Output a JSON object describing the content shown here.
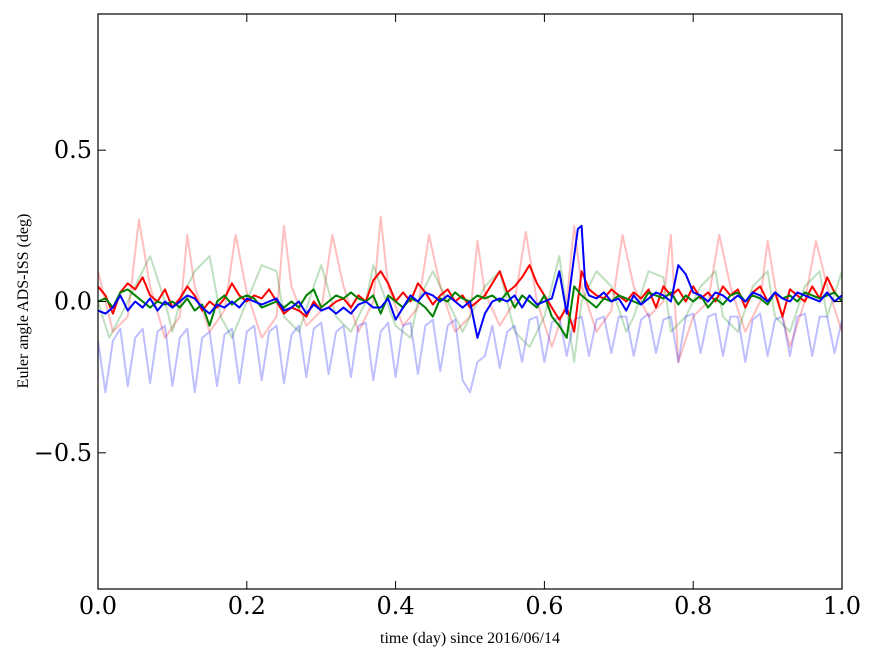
{
  "chart_data": {
    "type": "line",
    "title": "",
    "xlabel": "time (day) since 2016/06/14",
    "ylabel": "Euler angle ADS-ISS (deg)",
    "xlim": [
      0.0,
      1.0
    ],
    "ylim": [
      -0.95,
      0.95
    ],
    "x_ticks": [
      0.0,
      0.2,
      0.4,
      0.6,
      0.8,
      1.0
    ],
    "x_tick_labels": [
      "0.0",
      "0.2",
      "0.4",
      "0.6",
      "0.8",
      "1.0"
    ],
    "y_ticks": [
      -0.5,
      0.0,
      0.5
    ],
    "y_tick_labels": [
      "−0.5",
      "0.0",
      "0.5"
    ],
    "grid": false,
    "legend": "none",
    "series": [
      {
        "color": "#ff0000",
        "alpha": 0.25,
        "x": [
          0.0,
          0.02,
          0.04,
          0.055,
          0.07,
          0.09,
          0.11,
          0.12,
          0.13,
          0.15,
          0.17,
          0.185,
          0.2,
          0.22,
          0.24,
          0.25,
          0.26,
          0.28,
          0.3,
          0.315,
          0.33,
          0.35,
          0.37,
          0.38,
          0.39,
          0.41,
          0.43,
          0.445,
          0.46,
          0.48,
          0.5,
          0.51,
          0.52,
          0.54,
          0.56,
          0.575,
          0.59,
          0.61,
          0.63,
          0.64,
          0.65,
          0.67,
          0.69,
          0.705,
          0.72,
          0.74,
          0.76,
          0.77,
          0.78,
          0.8,
          0.82,
          0.835,
          0.85,
          0.87,
          0.89,
          0.9,
          0.91,
          0.93,
          0.95,
          0.965,
          0.98,
          1.0
        ],
        "y": [
          0.1,
          -0.1,
          -0.05,
          0.27,
          0.05,
          -0.12,
          -0.05,
          0.22,
          0.05,
          -0.1,
          -0.03,
          0.22,
          0.03,
          -0.12,
          -0.05,
          0.25,
          0.05,
          -0.08,
          -0.03,
          0.22,
          0.05,
          -0.1,
          0.0,
          0.28,
          0.05,
          -0.08,
          -0.02,
          0.22,
          0.05,
          -0.1,
          -0.05,
          0.2,
          0.03,
          -0.08,
          0.0,
          0.23,
          0.0,
          -0.15,
          0.0,
          0.25,
          0.05,
          -0.1,
          -0.03,
          0.22,
          0.05,
          -0.05,
          0.0,
          0.22,
          -0.2,
          -0.05,
          0.0,
          0.22,
          0.05,
          -0.1,
          0.0,
          0.2,
          0.05,
          -0.15,
          0.0,
          0.2,
          0.05,
          -0.1
        ]
      },
      {
        "color": "#008000",
        "alpha": 0.25,
        "x": [
          0.0,
          0.015,
          0.03,
          0.05,
          0.07,
          0.09,
          0.1,
          0.11,
          0.13,
          0.15,
          0.165,
          0.18,
          0.2,
          0.22,
          0.24,
          0.25,
          0.27,
          0.29,
          0.3,
          0.32,
          0.34,
          0.36,
          0.37,
          0.38,
          0.4,
          0.42,
          0.43,
          0.45,
          0.47,
          0.49,
          0.5,
          0.52,
          0.54,
          0.56,
          0.58,
          0.6,
          0.62,
          0.64,
          0.65,
          0.67,
          0.69,
          0.71,
          0.72,
          0.74,
          0.76,
          0.77,
          0.79,
          0.81,
          0.83,
          0.84,
          0.86,
          0.88,
          0.9,
          0.91,
          0.93,
          0.95,
          0.97,
          0.98,
          1.0
        ],
        "y": [
          0.0,
          -0.12,
          -0.05,
          0.05,
          0.15,
          0.0,
          -0.1,
          0.0,
          0.1,
          0.15,
          -0.05,
          -0.12,
          0.0,
          0.12,
          0.1,
          -0.05,
          -0.1,
          0.05,
          0.12,
          -0.05,
          -0.1,
          0.0,
          0.12,
          0.05,
          -0.08,
          -0.12,
          0.0,
          0.1,
          0.0,
          -0.1,
          -0.05,
          0.05,
          0.1,
          -0.1,
          -0.15,
          -0.05,
          0.15,
          -0.2,
          0.0,
          0.1,
          0.05,
          -0.1,
          -0.05,
          0.1,
          0.08,
          -0.1,
          -0.05,
          0.05,
          0.1,
          -0.05,
          -0.1,
          0.05,
          0.1,
          -0.05,
          -0.1,
          0.05,
          0.1,
          -0.05,
          0.1
        ]
      },
      {
        "color": "#0000ff",
        "alpha": 0.25,
        "x": [
          0.0,
          0.01,
          0.02,
          0.03,
          0.04,
          0.05,
          0.06,
          0.07,
          0.08,
          0.09,
          0.1,
          0.11,
          0.12,
          0.13,
          0.14,
          0.15,
          0.16,
          0.17,
          0.18,
          0.19,
          0.2,
          0.21,
          0.22,
          0.23,
          0.24,
          0.25,
          0.26,
          0.27,
          0.28,
          0.29,
          0.3,
          0.31,
          0.32,
          0.33,
          0.34,
          0.35,
          0.36,
          0.37,
          0.38,
          0.39,
          0.4,
          0.41,
          0.42,
          0.43,
          0.44,
          0.45,
          0.46,
          0.47,
          0.48,
          0.49,
          0.5,
          0.51,
          0.52,
          0.53,
          0.54,
          0.55,
          0.56,
          0.57,
          0.58,
          0.59,
          0.6,
          0.61,
          0.62,
          0.63,
          0.64,
          0.65,
          0.66,
          0.67,
          0.68,
          0.69,
          0.7,
          0.71,
          0.72,
          0.73,
          0.74,
          0.75,
          0.76,
          0.77,
          0.78,
          0.79,
          0.8,
          0.81,
          0.82,
          0.83,
          0.84,
          0.85,
          0.86,
          0.87,
          0.88,
          0.89,
          0.9,
          0.91,
          0.92,
          0.93,
          0.94,
          0.95,
          0.96,
          0.97,
          0.98,
          0.99,
          1.0
        ],
        "y": [
          -0.13,
          -0.3,
          -0.13,
          -0.09,
          -0.28,
          -0.12,
          -0.09,
          -0.27,
          -0.1,
          -0.08,
          -0.28,
          -0.12,
          -0.09,
          -0.3,
          -0.12,
          -0.1,
          -0.28,
          -0.11,
          -0.09,
          -0.27,
          -0.1,
          -0.08,
          -0.26,
          -0.1,
          -0.08,
          -0.27,
          -0.11,
          -0.08,
          -0.25,
          -0.09,
          -0.07,
          -0.24,
          -0.1,
          -0.08,
          -0.25,
          -0.08,
          -0.07,
          -0.26,
          -0.1,
          -0.07,
          -0.25,
          -0.08,
          -0.07,
          -0.24,
          -0.08,
          -0.06,
          -0.23,
          -0.08,
          -0.06,
          -0.26,
          -0.3,
          -0.2,
          -0.18,
          -0.08,
          -0.22,
          -0.1,
          -0.08,
          -0.2,
          -0.06,
          -0.05,
          -0.2,
          -0.07,
          -0.05,
          -0.18,
          -0.06,
          -0.05,
          -0.18,
          -0.06,
          -0.05,
          -0.17,
          -0.05,
          -0.05,
          -0.18,
          -0.06,
          -0.04,
          -0.17,
          -0.06,
          -0.05,
          -0.2,
          -0.05,
          -0.04,
          -0.17,
          -0.05,
          -0.04,
          -0.18,
          -0.05,
          -0.05,
          -0.2,
          -0.06,
          -0.04,
          -0.18,
          -0.06,
          -0.05,
          -0.18,
          -0.05,
          -0.04,
          -0.18,
          -0.05,
          -0.05,
          -0.17,
          -0.06
        ]
      },
      {
        "color": "#ff0000",
        "alpha": 1.0,
        "x": [
          0.0,
          0.01,
          0.02,
          0.03,
          0.04,
          0.05,
          0.06,
          0.07,
          0.08,
          0.09,
          0.1,
          0.11,
          0.12,
          0.13,
          0.14,
          0.15,
          0.16,
          0.17,
          0.18,
          0.19,
          0.2,
          0.21,
          0.22,
          0.23,
          0.24,
          0.25,
          0.26,
          0.27,
          0.28,
          0.29,
          0.3,
          0.31,
          0.32,
          0.33,
          0.34,
          0.35,
          0.36,
          0.37,
          0.38,
          0.39,
          0.4,
          0.41,
          0.42,
          0.43,
          0.44,
          0.45,
          0.46,
          0.47,
          0.48,
          0.49,
          0.5,
          0.51,
          0.52,
          0.53,
          0.54,
          0.55,
          0.56,
          0.57,
          0.58,
          0.59,
          0.6,
          0.61,
          0.62,
          0.63,
          0.64,
          0.65,
          0.66,
          0.67,
          0.68,
          0.69,
          0.7,
          0.71,
          0.72,
          0.73,
          0.74,
          0.75,
          0.76,
          0.77,
          0.78,
          0.79,
          0.8,
          0.81,
          0.82,
          0.83,
          0.84,
          0.85,
          0.86,
          0.87,
          0.88,
          0.89,
          0.9,
          0.91,
          0.92,
          0.93,
          0.94,
          0.95,
          0.96,
          0.97,
          0.98,
          0.99,
          1.0
        ],
        "y": [
          0.05,
          0.02,
          -0.04,
          0.03,
          0.06,
          0.04,
          0.08,
          0.02,
          0.0,
          0.04,
          -0.02,
          0.01,
          0.05,
          0.02,
          -0.03,
          0.0,
          -0.02,
          0.01,
          0.06,
          0.02,
          0.0,
          0.02,
          0.01,
          0.04,
          0.0,
          -0.04,
          -0.02,
          -0.03,
          -0.05,
          0.0,
          -0.03,
          -0.02,
          0.0,
          0.01,
          -0.02,
          0.02,
          0.0,
          0.07,
          0.1,
          0.06,
          0.0,
          0.03,
          0.0,
          0.06,
          0.03,
          -0.01,
          0.02,
          0.04,
          0.0,
          0.02,
          -0.02,
          0.0,
          0.02,
          0.06,
          0.1,
          0.03,
          0.05,
          0.08,
          0.12,
          0.06,
          0.02,
          -0.02,
          -0.06,
          -0.02,
          -0.1,
          0.1,
          0.04,
          0.02,
          0.01,
          0.04,
          0.02,
          0.0,
          0.03,
          0.01,
          0.04,
          -0.02,
          0.05,
          0.02,
          0.04,
          0.0,
          0.05,
          0.01,
          0.03,
          0.0,
          0.05,
          0.02,
          0.04,
          -0.02,
          0.03,
          0.05,
          0.0,
          0.03,
          -0.05,
          0.04,
          0.02,
          0.0,
          0.05,
          0.01,
          0.08,
          0.03,
          0.0
        ]
      },
      {
        "color": "#008000",
        "alpha": 1.0,
        "x": [
          0.0,
          0.01,
          0.02,
          0.03,
          0.04,
          0.05,
          0.06,
          0.07,
          0.08,
          0.09,
          0.1,
          0.11,
          0.12,
          0.13,
          0.14,
          0.15,
          0.16,
          0.17,
          0.18,
          0.19,
          0.2,
          0.21,
          0.22,
          0.23,
          0.24,
          0.25,
          0.26,
          0.27,
          0.28,
          0.29,
          0.3,
          0.31,
          0.32,
          0.33,
          0.34,
          0.35,
          0.36,
          0.37,
          0.38,
          0.39,
          0.4,
          0.41,
          0.42,
          0.43,
          0.44,
          0.45,
          0.46,
          0.47,
          0.48,
          0.49,
          0.5,
          0.51,
          0.52,
          0.53,
          0.54,
          0.55,
          0.56,
          0.57,
          0.58,
          0.59,
          0.6,
          0.61,
          0.62,
          0.63,
          0.64,
          0.65,
          0.66,
          0.67,
          0.68,
          0.69,
          0.7,
          0.71,
          0.72,
          0.73,
          0.74,
          0.75,
          0.76,
          0.77,
          0.78,
          0.79,
          0.8,
          0.81,
          0.82,
          0.83,
          0.84,
          0.85,
          0.86,
          0.87,
          0.88,
          0.89,
          0.9,
          0.91,
          0.92,
          0.93,
          0.94,
          0.95,
          0.96,
          0.97,
          0.98,
          0.99,
          1.0
        ],
        "y": [
          0.0,
          0.01,
          -0.02,
          0.03,
          0.04,
          0.02,
          0.0,
          -0.02,
          0.0,
          -0.01,
          0.0,
          -0.02,
          0.01,
          -0.03,
          -0.01,
          -0.08,
          0.0,
          0.02,
          -0.01,
          0.01,
          0.02,
          0.01,
          -0.02,
          -0.01,
          0.0,
          -0.02,
          0.0,
          -0.02,
          0.02,
          0.04,
          -0.02,
          0.0,
          0.02,
          0.01,
          0.03,
          0.01,
          0.0,
          0.02,
          -0.04,
          0.02,
          0.0,
          -0.02,
          0.01,
          0.0,
          -0.02,
          -0.05,
          0.01,
          0.0,
          0.03,
          0.01,
          0.0,
          0.02,
          0.01,
          0.02,
          0.0,
          0.03,
          -0.02,
          0.02,
          0.0,
          -0.02,
          0.02,
          -0.05,
          -0.08,
          -0.12,
          0.05,
          0.02,
          0.0,
          -0.02,
          0.01,
          0.0,
          0.02,
          0.01,
          0.0,
          -0.01,
          0.03,
          0.02,
          0.01,
          0.03,
          -0.01,
          0.02,
          0.0,
          0.02,
          -0.02,
          0.01,
          -0.01,
          0.02,
          0.03,
          0.0,
          0.02,
          0.01,
          -0.01,
          0.03,
          0.01,
          0.02,
          0.0,
          0.03,
          0.02,
          0.01,
          0.02,
          0.03,
          0.0
        ]
      },
      {
        "color": "#0000ff",
        "alpha": 1.0,
        "x": [
          0.0,
          0.01,
          0.02,
          0.03,
          0.04,
          0.05,
          0.06,
          0.07,
          0.08,
          0.09,
          0.1,
          0.11,
          0.12,
          0.13,
          0.14,
          0.15,
          0.16,
          0.17,
          0.18,
          0.19,
          0.2,
          0.21,
          0.22,
          0.23,
          0.24,
          0.25,
          0.26,
          0.27,
          0.28,
          0.29,
          0.3,
          0.31,
          0.32,
          0.33,
          0.34,
          0.35,
          0.36,
          0.37,
          0.38,
          0.39,
          0.4,
          0.41,
          0.42,
          0.43,
          0.44,
          0.45,
          0.46,
          0.47,
          0.48,
          0.49,
          0.5,
          0.51,
          0.52,
          0.53,
          0.54,
          0.55,
          0.56,
          0.57,
          0.58,
          0.59,
          0.6,
          0.61,
          0.62,
          0.63,
          0.64,
          0.645,
          0.65,
          0.655,
          0.66,
          0.67,
          0.68,
          0.69,
          0.7,
          0.71,
          0.72,
          0.73,
          0.74,
          0.75,
          0.76,
          0.77,
          0.78,
          0.79,
          0.8,
          0.81,
          0.82,
          0.83,
          0.84,
          0.85,
          0.86,
          0.87,
          0.88,
          0.89,
          0.9,
          0.91,
          0.92,
          0.93,
          0.94,
          0.95,
          0.96,
          0.97,
          0.98,
          0.99,
          1.0
        ],
        "y": [
          -0.03,
          -0.04,
          -0.02,
          0.02,
          -0.03,
          0.0,
          -0.02,
          0.01,
          -0.03,
          0.0,
          -0.02,
          0.0,
          0.02,
          0.01,
          -0.02,
          -0.04,
          -0.01,
          -0.02,
          0.0,
          -0.02,
          0.01,
          0.0,
          -0.01,
          0.0,
          0.01,
          -0.03,
          -0.02,
          0.0,
          -0.04,
          -0.01,
          -0.03,
          -0.02,
          -0.04,
          -0.02,
          -0.04,
          -0.01,
          0.0,
          -0.02,
          -0.02,
          0.01,
          -0.06,
          -0.02,
          0.02,
          0.0,
          0.03,
          0.02,
          0.0,
          0.02,
          0.0,
          -0.02,
          0.0,
          -0.12,
          -0.04,
          0.0,
          0.01,
          0.0,
          0.02,
          -0.02,
          0.02,
          -0.01,
          0.0,
          0.01,
          0.1,
          -0.04,
          0.15,
          0.24,
          0.25,
          0.05,
          0.02,
          0.01,
          0.03,
          0.0,
          0.01,
          -0.03,
          0.02,
          -0.01,
          0.01,
          0.03,
          0.02,
          0.0,
          0.12,
          0.09,
          0.03,
          0.02,
          0.0,
          0.03,
          0.02,
          0.0,
          0.02,
          0.0,
          0.03,
          0.02,
          0.0,
          0.03,
          0.01,
          0.0,
          0.03,
          0.02,
          0.01,
          0.0,
          0.03,
          0.0,
          0.02
        ]
      }
    ]
  }
}
